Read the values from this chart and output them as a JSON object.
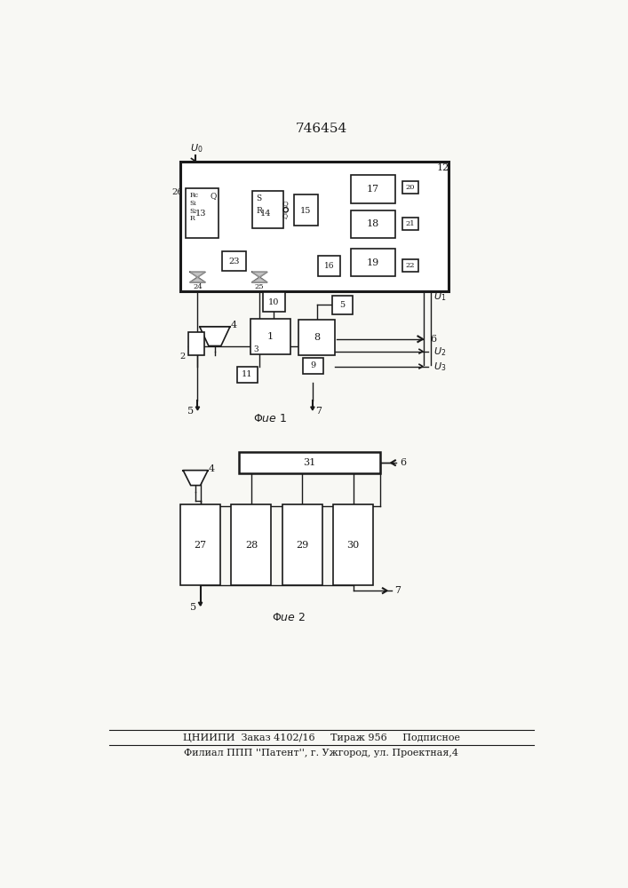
{
  "title": "746454",
  "footer_line1": "ЦНИИПИ  Заказ 4102/16     Тираж 956     Подписное",
  "footer_line2": "Филиал ППП ''Патент'', г. Ужгород, ул. Проектная,4",
  "bg_color": "#f8f8f4",
  "line_color": "#1a1a1a"
}
